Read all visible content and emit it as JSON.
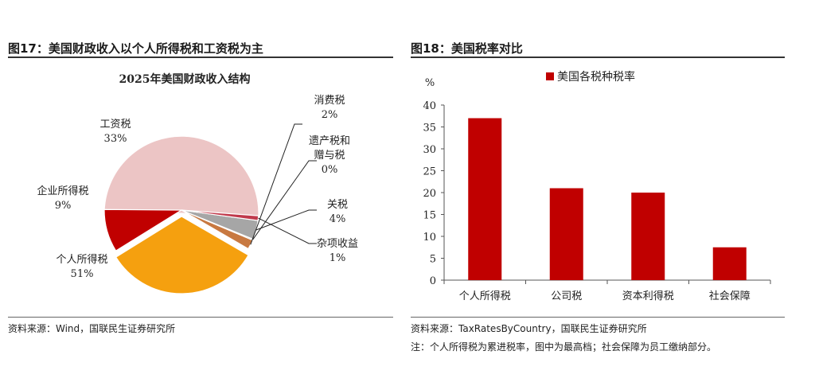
{
  "left_panel": {
    "figure_title": "图17：美国财政收入以个人所得税和工资税为主",
    "source": "资料来源：Wind，国联民生证券研究所"
  },
  "right_panel": {
    "figure_title": "图18：美国税率对比",
    "source": "资料来源：TaxRatesByCountry，国联民生证券研究所",
    "note": "注：个人所得税为累进税率，图中为最高档；社会保障为员工缴纳部分。"
  },
  "colors": {
    "personal": "#ECC5C5",
    "corporate": "#C00000",
    "payroll": "#F5A00F",
    "consumption": "#C87941",
    "estate": "#7F7F7F",
    "customs": "#A6A6A6",
    "misc": "#C0394B",
    "bar": "#C00000"
  },
  "chart_data": [
    {
      "type": "pie",
      "title": "2025年美国财政收入结构",
      "unit": "%",
      "slices": [
        {
          "key": "personal",
          "label": "个人所得税",
          "value": 51,
          "value_label": "51%",
          "color": "#ECC5C5"
        },
        {
          "key": "corporate",
          "label": "企业所得税",
          "value": 9,
          "value_label": "9%",
          "color": "#C00000"
        },
        {
          "key": "payroll",
          "label": "工资税",
          "value": 33,
          "value_label": "33%",
          "color": "#F5A00F"
        },
        {
          "key": "consumption",
          "label": "消费税",
          "value": 2,
          "value_label": "2%",
          "color": "#C87941"
        },
        {
          "key": "estate",
          "label": "遗产税和\n赠与税",
          "value": 0,
          "value_label": "0%",
          "color": "#7F7F7F"
        },
        {
          "key": "customs",
          "label": "关税",
          "value": 4,
          "value_label": "4%",
          "color": "#A6A6A6"
        },
        {
          "key": "misc",
          "label": "杂项收益",
          "value": 1,
          "value_label": "1%",
          "color": "#C0394B"
        }
      ]
    },
    {
      "type": "bar",
      "title": "",
      "ylabel": "%",
      "legend": {
        "entries": [
          "美国各税种税率"
        ],
        "position": "top"
      },
      "categories": [
        "个人所得税",
        "公司税",
        "资本利得税",
        "社会保障"
      ],
      "series": [
        {
          "name": "美国各税种税率",
          "values": [
            37,
            21,
            20,
            7.5
          ]
        }
      ],
      "ylim": [
        0,
        40
      ],
      "yticks": [
        0,
        5,
        10,
        15,
        20,
        25,
        30,
        35,
        40
      ],
      "grid": false
    }
  ]
}
